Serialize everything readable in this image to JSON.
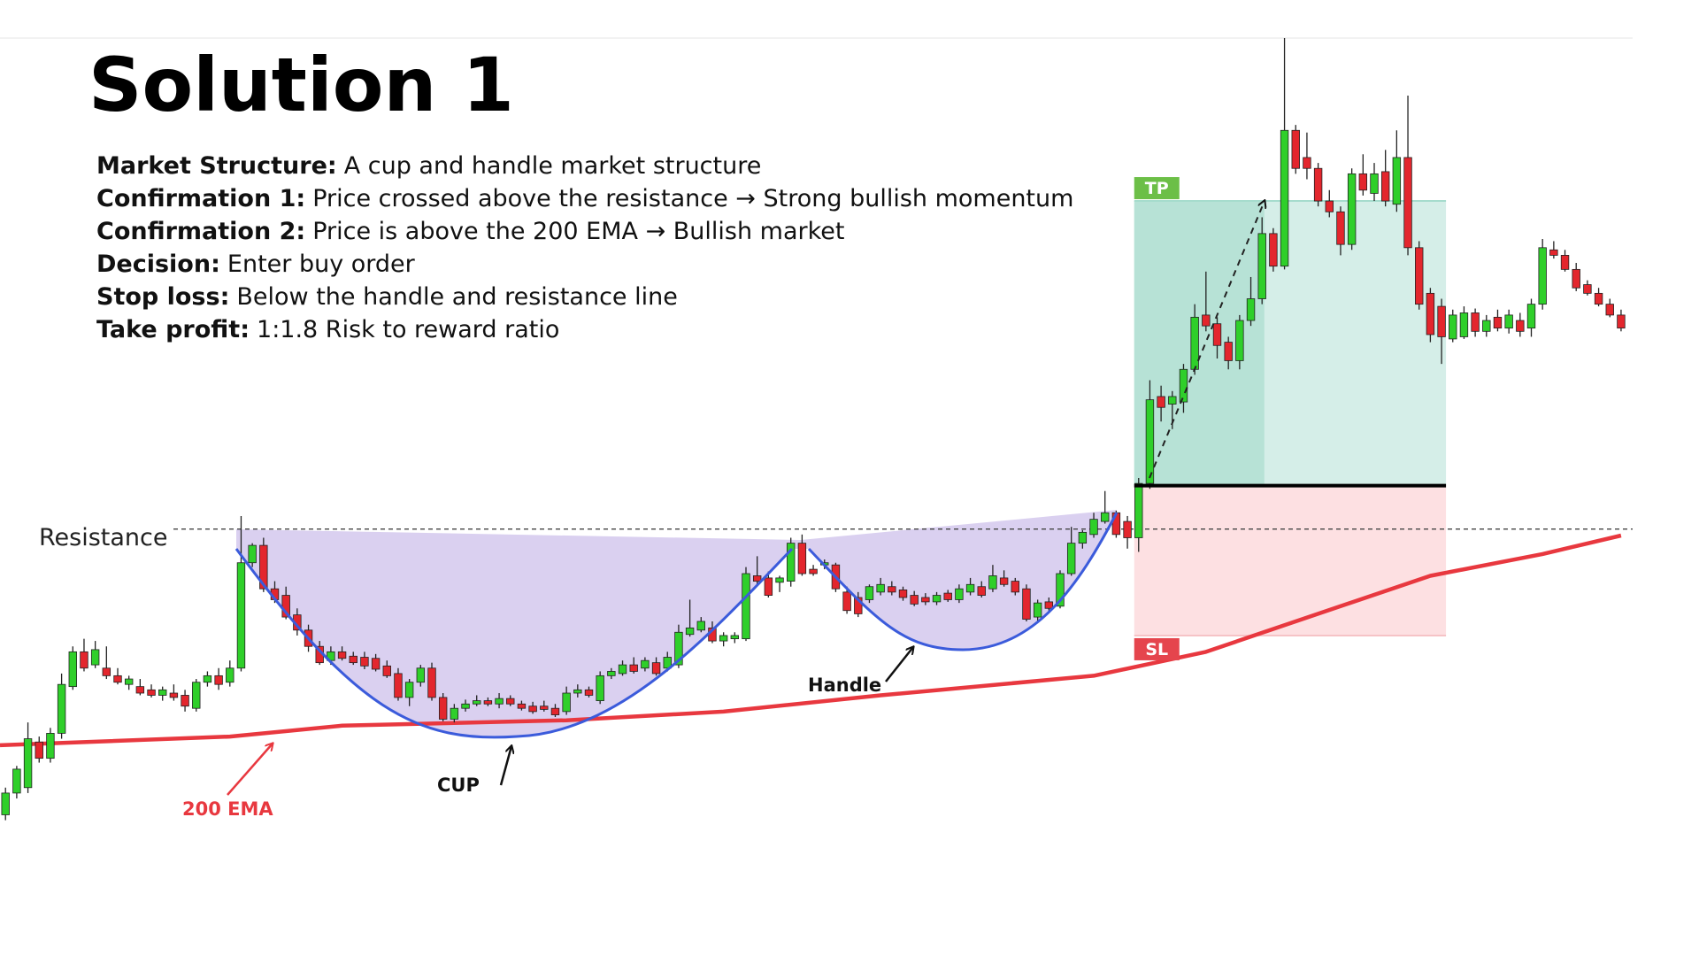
{
  "header": {
    "title": "Solution 1"
  },
  "notes": [
    {
      "label": "Market Structure:",
      "text": "A cup and handle market structure"
    },
    {
      "label": "Confirmation 1:",
      "text": "Price crossed above the resistance → Strong bullish momentum"
    },
    {
      "label": "Confirmation 2:",
      "text": "Price is above the 200 EMA → Bullish market"
    },
    {
      "label": "Decision:",
      "text": "Enter buy order"
    },
    {
      "label": "Stop loss:",
      "text": "Below the handle and resistance line"
    },
    {
      "label": "Take profit:",
      "text": "1:1.8 Risk to reward ratio"
    }
  ],
  "chart_data": {
    "type": "candlestick",
    "up_color": "#2fcf2a",
    "down_color": "#e3262d",
    "ylim": [
      120,
      1000
    ],
    "candles": [
      [
        250,
        275,
        245,
        270
      ],
      [
        270,
        295,
        265,
        292
      ],
      [
        275,
        335,
        270,
        320
      ],
      [
        317,
        322,
        298,
        302
      ],
      [
        302,
        330,
        298,
        325
      ],
      [
        325,
        380,
        320,
        370
      ],
      [
        368,
        405,
        365,
        400
      ],
      [
        400,
        412,
        382,
        385
      ],
      [
        388,
        410,
        385,
        402
      ],
      [
        385,
        405,
        375,
        378
      ],
      [
        378,
        385,
        370,
        372
      ],
      [
        370,
        378,
        365,
        375
      ],
      [
        368,
        375,
        360,
        362
      ],
      [
        365,
        370,
        358,
        360
      ],
      [
        360,
        368,
        355,
        365
      ],
      [
        362,
        370,
        355,
        358
      ],
      [
        360,
        365,
        345,
        350
      ],
      [
        348,
        375,
        345,
        372
      ],
      [
        372,
        382,
        368,
        378
      ],
      [
        378,
        385,
        365,
        370
      ],
      [
        372,
        392,
        368,
        385
      ],
      [
        385,
        525,
        382,
        482
      ],
      [
        482,
        500,
        478,
        498
      ],
      [
        498,
        505,
        455,
        458
      ],
      [
        458,
        465,
        445,
        448
      ],
      [
        452,
        460,
        430,
        432
      ],
      [
        434,
        440,
        415,
        420
      ],
      [
        420,
        425,
        400,
        405
      ],
      [
        405,
        410,
        388,
        390
      ],
      [
        392,
        405,
        388,
        400
      ],
      [
        400,
        405,
        392,
        394
      ],
      [
        396,
        400,
        388,
        390
      ],
      [
        395,
        400,
        384,
        387
      ],
      [
        394,
        398,
        382,
        384
      ],
      [
        387,
        392,
        376,
        378
      ],
      [
        380,
        385,
        355,
        358
      ],
      [
        358,
        375,
        350,
        372
      ],
      [
        372,
        388,
        368,
        385
      ],
      [
        385,
        390,
        355,
        358
      ],
      [
        358,
        362,
        336,
        338
      ],
      [
        338,
        352,
        335,
        348
      ],
      [
        348,
        356,
        345,
        352
      ],
      [
        352,
        360,
        350,
        355
      ],
      [
        355,
        358,
        350,
        352
      ],
      [
        352,
        362,
        348,
        357
      ],
      [
        357,
        360,
        350,
        352
      ],
      [
        352,
        355,
        346,
        348
      ],
      [
        350,
        354,
        343,
        345
      ],
      [
        350,
        355,
        345,
        347
      ],
      [
        348,
        352,
        340,
        342
      ],
      [
        345,
        368,
        342,
        362
      ],
      [
        362,
        370,
        358,
        365
      ],
      [
        365,
        368,
        358,
        360
      ],
      [
        355,
        382,
        352,
        378
      ],
      [
        378,
        385,
        375,
        382
      ],
      [
        380,
        392,
        378,
        388
      ],
      [
        388,
        395,
        380,
        382
      ],
      [
        385,
        395,
        382,
        392
      ],
      [
        390,
        395,
        378,
        380
      ],
      [
        385,
        400,
        382,
        395
      ],
      [
        388,
        425,
        385,
        418
      ],
      [
        416,
        448,
        414,
        422
      ],
      [
        420,
        432,
        418,
        428
      ],
      [
        422,
        428,
        408,
        410
      ],
      [
        410,
        418,
        405,
        415
      ],
      [
        412,
        418,
        408,
        415
      ],
      [
        412,
        478,
        410,
        472
      ],
      [
        470,
        488,
        462,
        465
      ],
      [
        468,
        474,
        450,
        452
      ],
      [
        464,
        470,
        455,
        468
      ],
      [
        465,
        505,
        460,
        500
      ],
      [
        500,
        508,
        470,
        472
      ],
      [
        476,
        480,
        470,
        472
      ],
      [
        480,
        485,
        476,
        482
      ],
      [
        480,
        482,
        455,
        458
      ],
      [
        455,
        460,
        435,
        438
      ],
      [
        450,
        455,
        432,
        435
      ],
      [
        448,
        462,
        445,
        460
      ],
      [
        455,
        468,
        452,
        462
      ],
      [
        460,
        465,
        452,
        455
      ],
      [
        457,
        460,
        447,
        450
      ],
      [
        452,
        456,
        442,
        444
      ],
      [
        450,
        454,
        443,
        446
      ],
      [
        446,
        455,
        443,
        452
      ],
      [
        454,
        457,
        446,
        448
      ],
      [
        448,
        462,
        445,
        458
      ],
      [
        455,
        468,
        452,
        462
      ],
      [
        460,
        465,
        450,
        452
      ],
      [
        458,
        480,
        455,
        470
      ],
      [
        468,
        475,
        460,
        462
      ],
      [
        465,
        468,
        452,
        455
      ],
      [
        458,
        462,
        428,
        430
      ],
      [
        432,
        448,
        428,
        445
      ],
      [
        446,
        450,
        438,
        440
      ],
      [
        442,
        475,
        440,
        472
      ],
      [
        472,
        515,
        470,
        500
      ],
      [
        500,
        512,
        495,
        510
      ],
      [
        508,
        528,
        505,
        522
      ],
      [
        520,
        548,
        518,
        528
      ],
      [
        528,
        530,
        505,
        508
      ],
      [
        520,
        525,
        495,
        505
      ],
      [
        505,
        560,
        492,
        555
      ],
      [
        555,
        650,
        550,
        632
      ],
      [
        635,
        645,
        612,
        625
      ],
      [
        628,
        640,
        605,
        635
      ],
      [
        630,
        665,
        620,
        660
      ],
      [
        660,
        720,
        655,
        708
      ],
      [
        710,
        750,
        695,
        700
      ],
      [
        702,
        708,
        670,
        682
      ],
      [
        685,
        690,
        660,
        668
      ],
      [
        668,
        710,
        660,
        705
      ],
      [
        705,
        745,
        700,
        725
      ],
      [
        725,
        800,
        720,
        785
      ],
      [
        785,
        790,
        750,
        755
      ],
      [
        755,
        965,
        752,
        880
      ],
      [
        880,
        885,
        840,
        845
      ],
      [
        855,
        878,
        835,
        845
      ],
      [
        845,
        850,
        810,
        815
      ],
      [
        815,
        825,
        800,
        805
      ],
      [
        805,
        810,
        765,
        775
      ],
      [
        775,
        845,
        770,
        840
      ],
      [
        840,
        858,
        820,
        825
      ],
      [
        822,
        850,
        815,
        840
      ],
      [
        842,
        862,
        810,
        815
      ],
      [
        812,
        880,
        805,
        855
      ],
      [
        855,
        912,
        765,
        772
      ],
      [
        772,
        778,
        715,
        720
      ],
      [
        730,
        735,
        685,
        692
      ],
      [
        718,
        725,
        665,
        690
      ],
      [
        688,
        715,
        685,
        710
      ],
      [
        690,
        718,
        688,
        712
      ],
      [
        712,
        716,
        690,
        695
      ],
      [
        695,
        710,
        690,
        705
      ],
      [
        708,
        715,
        695,
        698
      ],
      [
        698,
        715,
        693,
        710
      ],
      [
        705,
        712,
        690,
        695
      ],
      [
        698,
        725,
        690,
        720
      ],
      [
        720,
        780,
        715,
        772
      ],
      [
        770,
        778,
        762,
        765
      ],
      [
        765,
        770,
        750,
        752
      ],
      [
        752,
        758,
        732,
        735
      ],
      [
        738,
        742,
        728,
        730
      ],
      [
        730,
        735,
        718,
        720
      ],
      [
        720,
        725,
        708,
        710
      ],
      [
        710,
        715,
        695,
        698
      ]
    ],
    "ema": {
      "name": "200 EMA",
      "color": "#e8383f",
      "x": [
        0,
        20,
        30,
        50,
        64,
        78,
        97,
        107,
        117,
        127,
        137,
        144
      ],
      "values": [
        314,
        322,
        332,
        337,
        345,
        360,
        378,
        400,
        435,
        470,
        490,
        507
      ]
    },
    "levels": {
      "resistance": 513,
      "entry": 553,
      "take_profit": 815,
      "stop_loss": 415
    },
    "annotations": {
      "resistance": "Resistance",
      "tp": "TP",
      "sl": "SL",
      "cup": "CUP",
      "handle": "Handle"
    }
  }
}
